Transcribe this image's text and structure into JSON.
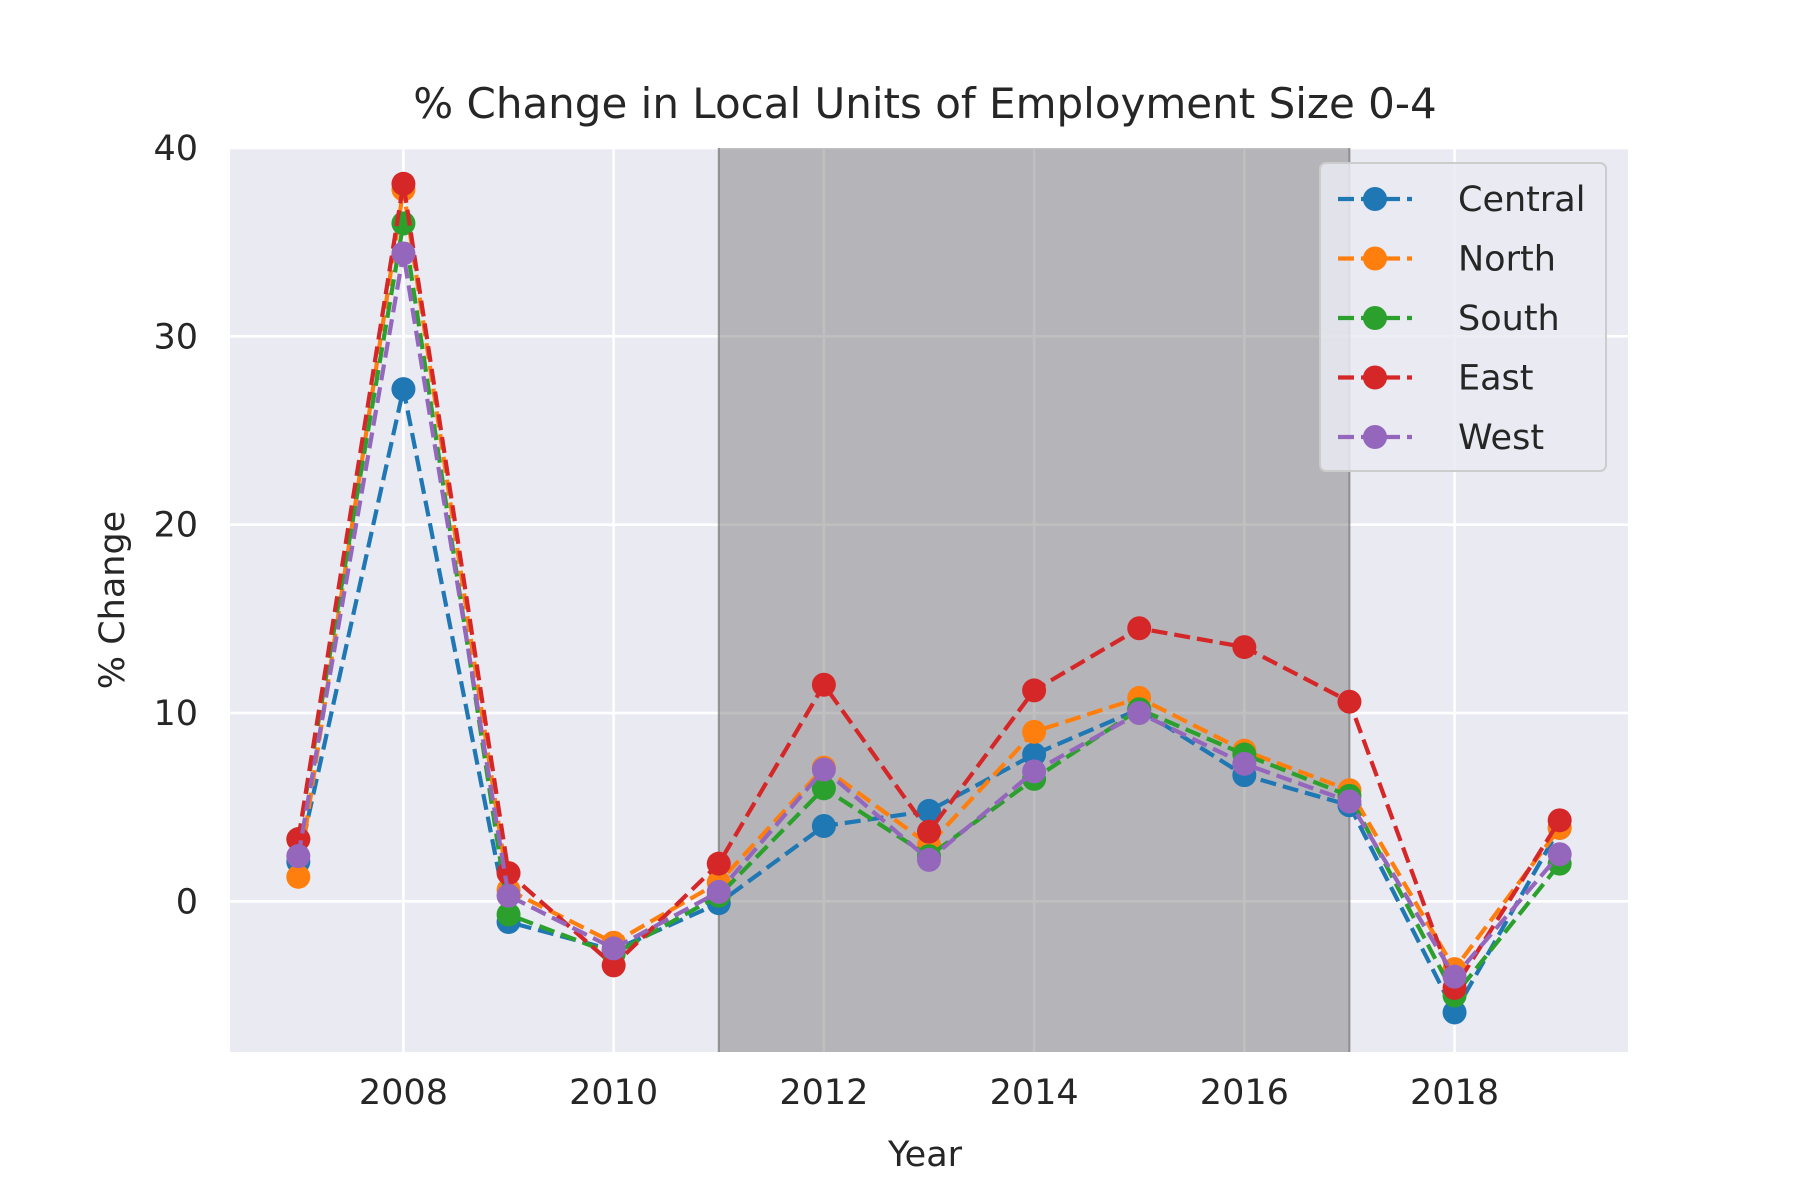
{
  "chart_data": {
    "type": "line",
    "title": "% Change in Local Units of Employment Size 0-4",
    "xlabel": "Year",
    "ylabel": "% Change",
    "x": [
      2007,
      2008,
      2009,
      2010,
      2011,
      2012,
      2013,
      2014,
      2015,
      2016,
      2017,
      2018,
      2019
    ],
    "xlim": [
      2006.35,
      2019.65
    ],
    "ylim": [
      -8,
      40
    ],
    "xticks": [
      2008,
      2010,
      2012,
      2014,
      2016,
      2018
    ],
    "yticks": [
      0,
      10,
      20,
      30,
      40
    ],
    "grid": true,
    "legend_position": "top-right",
    "shaded_region": {
      "x_start": 2011,
      "x_end": 2017
    },
    "series": [
      {
        "name": "Central",
        "color": "#1f77b4",
        "values": [
          2.1,
          27.2,
          -1.1,
          -2.6,
          -0.1,
          4.0,
          4.8,
          7.8,
          10.2,
          6.7,
          5.1,
          -5.9,
          3.9
        ]
      },
      {
        "name": "North",
        "color": "#ff7f0e",
        "values": [
          1.3,
          37.8,
          0.6,
          -2.2,
          1.0,
          7.1,
          3.0,
          9.0,
          10.8,
          8.0,
          5.9,
          -3.6,
          3.9
        ]
      },
      {
        "name": "South",
        "color": "#2ca02c",
        "values": [
          3.3,
          36.0,
          -0.7,
          -2.8,
          0.3,
          6.0,
          2.4,
          6.5,
          10.2,
          7.8,
          5.6,
          -5.0,
          2.0
        ]
      },
      {
        "name": "East",
        "color": "#d62728",
        "values": [
          3.3,
          38.1,
          1.5,
          -3.4,
          2.0,
          11.5,
          3.7,
          11.2,
          14.5,
          13.5,
          10.6,
          -4.6,
          4.3
        ]
      },
      {
        "name": "West",
        "color": "#9467bd",
        "values": [
          2.4,
          34.4,
          0.3,
          -2.5,
          0.5,
          7.0,
          2.2,
          6.9,
          10.0,
          7.3,
          5.3,
          -4.0,
          2.5
        ]
      }
    ]
  }
}
